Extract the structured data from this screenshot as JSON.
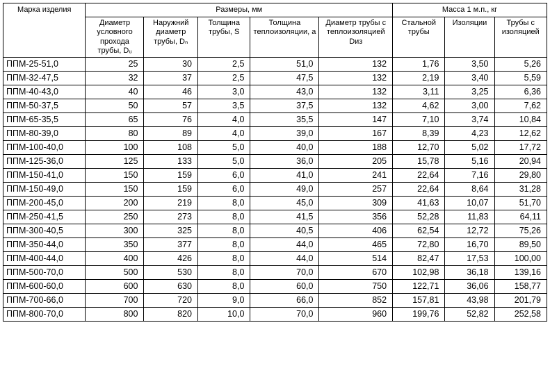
{
  "headers": {
    "mark": "Марка изделия",
    "sizes": "Размеры, мм",
    "mass": "Масса 1 м.п., кг",
    "d_u": "Диаметр условного прохода трубы, Dᵤ",
    "d_n": "Наружний диаметр трубы, Dₙ",
    "s": "Толщина трубы, S",
    "a": "Толщина теплоизоляции, а",
    "d_iz": "Диаметр трубы с теплоизоляцией Dиз",
    "m_steel": "Стальной трубы",
    "m_ins": "Изоляции",
    "m_tot": "Трубы с изоляцией"
  },
  "rows": [
    {
      "mark": "ППМ-25-51,0",
      "du": "25",
      "dn": "30",
      "s": "2,5",
      "a": "51,0",
      "diz": "132",
      "m1": "1,76",
      "m2": "3,50",
      "m3": "5,26"
    },
    {
      "mark": "ППМ-32-47,5",
      "du": "32",
      "dn": "37",
      "s": "2,5",
      "a": "47,5",
      "diz": "132",
      "m1": "2,19",
      "m2": "3,40",
      "m3": "5,59"
    },
    {
      "mark": "ППМ-40-43,0",
      "du": "40",
      "dn": "46",
      "s": "3,0",
      "a": "43,0",
      "diz": "132",
      "m1": "3,11",
      "m2": "3,25",
      "m3": "6,36"
    },
    {
      "mark": "ППМ-50-37,5",
      "du": "50",
      "dn": "57",
      "s": "3,5",
      "a": "37,5",
      "diz": "132",
      "m1": "4,62",
      "m2": "3,00",
      "m3": "7,62"
    },
    {
      "mark": "ППМ-65-35,5",
      "du": "65",
      "dn": "76",
      "s": "4,0",
      "a": "35,5",
      "diz": "147",
      "m1": "7,10",
      "m2": "3,74",
      "m3": "10,84"
    },
    {
      "mark": "ППМ-80-39,0",
      "du": "80",
      "dn": "89",
      "s": "4,0",
      "a": "39,0",
      "diz": "167",
      "m1": "8,39",
      "m2": "4,23",
      "m3": "12,62"
    },
    {
      "mark": "ППМ-100-40,0",
      "du": "100",
      "dn": "108",
      "s": "5,0",
      "a": "40,0",
      "diz": "188",
      "m1": "12,70",
      "m2": "5,02",
      "m3": "17,72"
    },
    {
      "mark": "ППМ-125-36,0",
      "du": "125",
      "dn": "133",
      "s": "5,0",
      "a": "36,0",
      "diz": "205",
      "m1": "15,78",
      "m2": "5,16",
      "m3": "20,94"
    },
    {
      "mark": "ППМ-150-41,0",
      "du": "150",
      "dn": "159",
      "s": "6,0",
      "a": "41,0",
      "diz": "241",
      "m1": "22,64",
      "m2": "7,16",
      "m3": "29,80"
    },
    {
      "mark": "ППМ-150-49,0",
      "du": "150",
      "dn": "159",
      "s": "6,0",
      "a": "49,0",
      "diz": "257",
      "m1": "22,64",
      "m2": "8,64",
      "m3": "31,28"
    },
    {
      "mark": "ППМ-200-45,0",
      "du": "200",
      "dn": "219",
      "s": "8,0",
      "a": "45,0",
      "diz": "309",
      "m1": "41,63",
      "m2": "10,07",
      "m3": "51,70"
    },
    {
      "mark": "ППМ-250-41,5",
      "du": "250",
      "dn": "273",
      "s": "8,0",
      "a": "41,5",
      "diz": "356",
      "m1": "52,28",
      "m2": "11,83",
      "m3": "64,11"
    },
    {
      "mark": "ППМ-300-40,5",
      "du": "300",
      "dn": "325",
      "s": "8,0",
      "a": "40,5",
      "diz": "406",
      "m1": "62,54",
      "m2": "12,72",
      "m3": "75,26"
    },
    {
      "mark": "ППМ-350-44,0",
      "du": "350",
      "dn": "377",
      "s": "8,0",
      "a": "44,0",
      "diz": "465",
      "m1": "72,80",
      "m2": "16,70",
      "m3": "89,50"
    },
    {
      "mark": "ППМ-400-44,0",
      "du": "400",
      "dn": "426",
      "s": "8,0",
      "a": "44,0",
      "diz": "514",
      "m1": "82,47",
      "m2": "17,53",
      "m3": "100,00"
    },
    {
      "mark": "ППМ-500-70,0",
      "du": "500",
      "dn": "530",
      "s": "8,0",
      "a": "70,0",
      "diz": "670",
      "m1": "102,98",
      "m2": "36,18",
      "m3": "139,16"
    },
    {
      "mark": "ППМ-600-60,0",
      "du": "600",
      "dn": "630",
      "s": "8,0",
      "a": "60,0",
      "diz": "750",
      "m1": "122,71",
      "m2": "36,06",
      "m3": "158,77"
    },
    {
      "mark": "ППМ-700-66,0",
      "du": "700",
      "dn": "720",
      "s": "9,0",
      "a": "66,0",
      "diz": "852",
      "m1": "157,81",
      "m2": "43,98",
      "m3": "201,79"
    },
    {
      "mark": "ППМ-800-70,0",
      "du": "800",
      "dn": "820",
      "s": "10,0",
      "a": "70,0",
      "diz": "960",
      "m1": "199,76",
      "m2": "52,82",
      "m3": "252,58"
    }
  ]
}
